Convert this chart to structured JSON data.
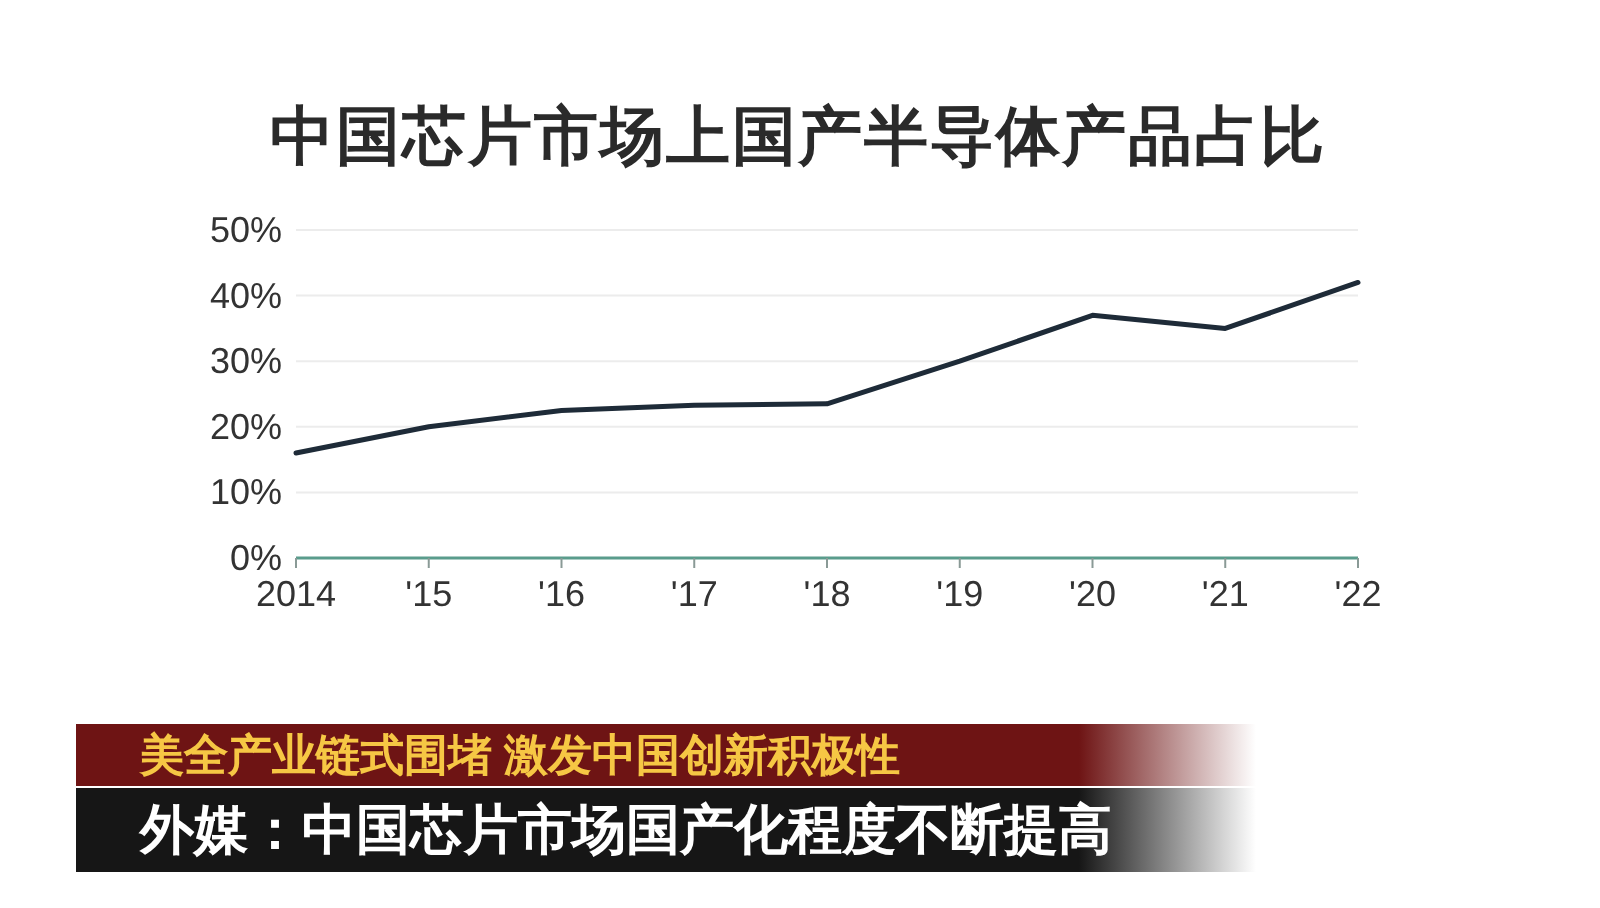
{
  "chart_data": {
    "type": "line",
    "title": "中国芯片市场上国产半导体产品占比",
    "categories": [
      "2014",
      "'15",
      "'16",
      "'17",
      "'18",
      "'19",
      "'20",
      "'21",
      "'22"
    ],
    "series": [
      {
        "color": "#1e2b38",
        "values": [
          16,
          20,
          22.5,
          23.3,
          23.5,
          30,
          37,
          35,
          42
        ]
      }
    ],
    "ylim": [
      0,
      50
    ],
    "yticks": [
      {
        "value": 0,
        "label": "0%"
      },
      {
        "value": 10,
        "label": "10%"
      },
      {
        "value": 20,
        "label": "20%"
      },
      {
        "value": 30,
        "label": "30%"
      },
      {
        "value": 40,
        "label": "40%"
      },
      {
        "value": 50,
        "label": "50%"
      }
    ],
    "grid": "y",
    "annotations": [
      "美全产业链式围堵 激发中国创新积极性",
      "外媒：中国芯片市场国产化程度不断提高"
    ]
  }
}
